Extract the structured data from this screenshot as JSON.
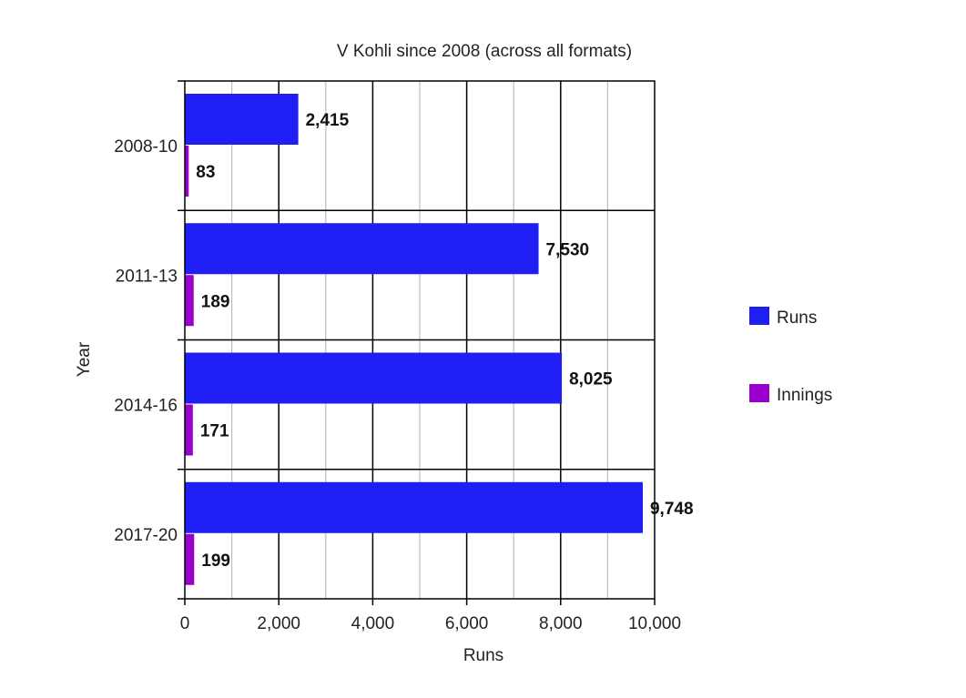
{
  "chart_data": {
    "type": "bar",
    "orientation": "horizontal",
    "title": "V Kohli since 2008 (across all formats)",
    "xlabel": "Runs",
    "ylabel": "Year",
    "xlim": [
      0,
      10000
    ],
    "x_ticks": [
      0,
      2000,
      4000,
      6000,
      8000,
      10000
    ],
    "x_tick_labels": [
      "0",
      "2,000",
      "4,000",
      "6,000",
      "8,000",
      "10,000"
    ],
    "categories": [
      "2008-10",
      "2011-13",
      "2014-16",
      "2017-20"
    ],
    "series": [
      {
        "name": "Runs",
        "color": "#1f1ff5",
        "values": [
          2415,
          7530,
          8025,
          9748
        ],
        "labels": [
          "2,415",
          "7,530",
          "8,025",
          "9,748"
        ]
      },
      {
        "name": "Innings",
        "color": "#9900cc",
        "values": [
          83,
          189,
          171,
          199
        ],
        "labels": [
          "83",
          "189",
          "171",
          "199"
        ]
      }
    ],
    "grid": true,
    "legend_position": "right"
  }
}
